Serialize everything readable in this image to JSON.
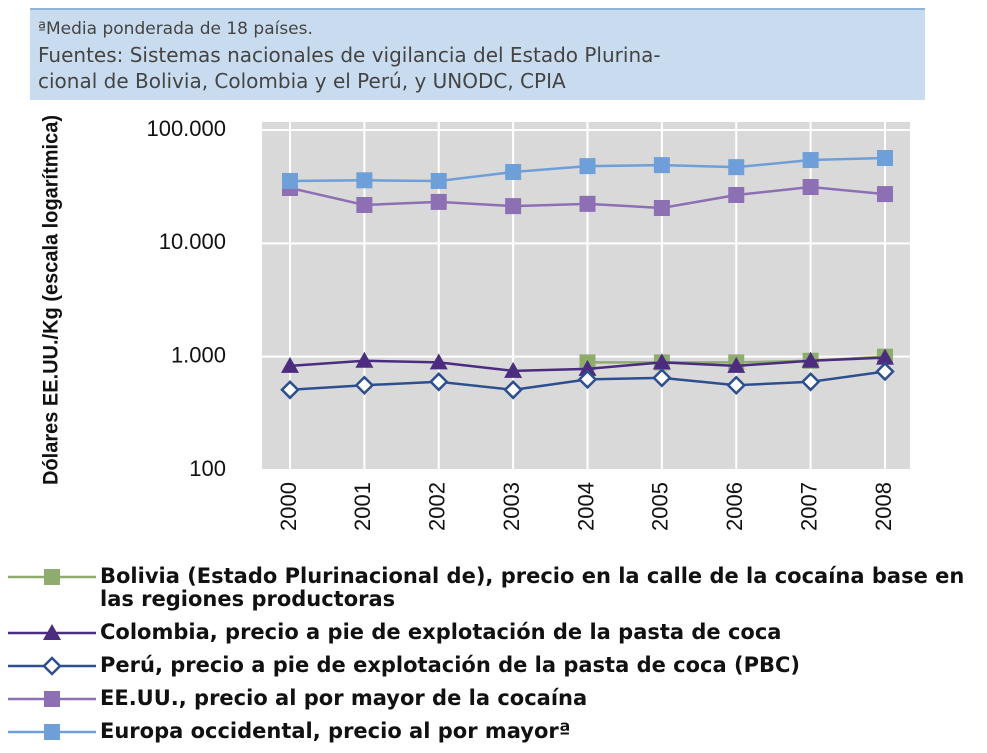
{
  "chart_data": {
    "type": "line",
    "notes": [
      "ªMedia ponderada de 18 países.",
      "Fuentes: Sistemas nacionales de vigilancia del Estado Plurina-",
      "cional de Bolivia, Colombia y el Perú, y UNODC, CPIA"
    ],
    "y_label": "Dólares EE.UU./Kg (escala logarítmica)",
    "categories": [
      "2000",
      "2001",
      "2002",
      "2003",
      "2004",
      "2005",
      "2006",
      "2007",
      "2008"
    ],
    "log_scale": true,
    "grid": true,
    "ylim": [
      100,
      100000
    ],
    "yticks": [
      {
        "value": 100,
        "label": "100"
      },
      {
        "value": 1000,
        "label": "1.000"
      },
      {
        "value": 10000,
        "label": "10.000"
      },
      {
        "value": 100000,
        "label": "100.000"
      }
    ],
    "series": [
      {
        "name": "Bolivia (Estado Plurinacional de), precio en la calle de la cocaína base en las regiones productoras",
        "color": "#8fac6f",
        "marker": "square",
        "values": [
          null,
          null,
          null,
          null,
          890,
          890,
          890,
          920,
          1000
        ]
      },
      {
        "name": "Colombia, precio a pie de explotación de la pasta de coca",
        "color": "#4b2c7f",
        "marker": "triangle",
        "values": [
          830,
          920,
          890,
          750,
          780,
          890,
          830,
          920,
          980
        ]
      },
      {
        "name": "Perú, precio a pie de explotación de la pasta de coca (PBC)",
        "color": "#2e4f8f",
        "marker": "diamond",
        "values": [
          510,
          560,
          600,
          510,
          630,
          650,
          560,
          600,
          740
        ]
      },
      {
        "name": "EE.UU., precio al por mayor de la cocaína",
        "color": "#8d6fb3",
        "marker": "square",
        "values": [
          30800,
          21800,
          23200,
          21300,
          22300,
          20500,
          26700,
          31400,
          27200
        ]
      },
      {
        "name": "Europa occidental, precio al por mayorª",
        "color": "#6e9fd8",
        "marker": "square",
        "values": [
          35500,
          36000,
          35500,
          42600,
          48000,
          49000,
          47000,
          54300,
          56600
        ]
      }
    ]
  }
}
